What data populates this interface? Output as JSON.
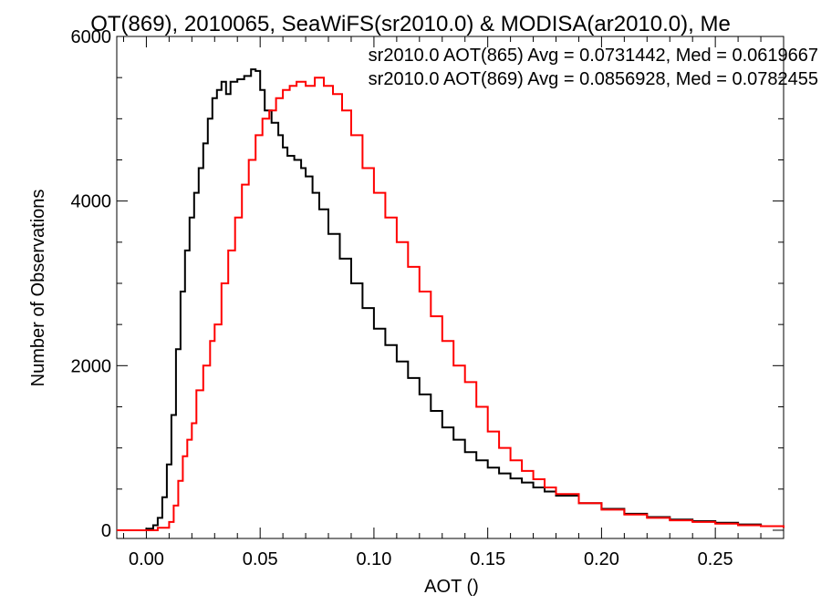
{
  "chart_data": {
    "type": "line",
    "style": "step-histogram",
    "title": "OT(869), 2010065, SeaWiFS(sr2010.0) & MODISA(ar2010.0), Me",
    "xlabel": "AOT ()",
    "ylabel": "Number of Observations",
    "xlim": [
      -0.013,
      0.28
    ],
    "ylim": [
      -100,
      6000
    ],
    "xticks": [
      0.0,
      0.05,
      0.1,
      0.15,
      0.2,
      0.25
    ],
    "xtick_labels": [
      "0.00",
      "0.05",
      "0.10",
      "0.15",
      "0.20",
      "0.25"
    ],
    "yticks": [
      0,
      2000,
      4000,
      6000
    ],
    "ytick_labels": [
      "0",
      "2000",
      "4000",
      "6000"
    ],
    "grid": false,
    "legend_position": "top-right",
    "series": [
      {
        "name": "sr2010.0 AOT(865) Avg = 0.0731442, Med = 0.0619667",
        "color": "#000000",
        "x": [
          -0.013,
          0.0,
          0.003,
          0.005,
          0.007,
          0.009,
          0.011,
          0.013,
          0.015,
          0.017,
          0.019,
          0.021,
          0.023,
          0.025,
          0.027,
          0.029,
          0.031,
          0.033,
          0.035,
          0.037,
          0.04,
          0.043,
          0.046,
          0.048,
          0.05,
          0.052,
          0.055,
          0.058,
          0.06,
          0.062,
          0.065,
          0.068,
          0.07,
          0.073,
          0.076,
          0.08,
          0.085,
          0.09,
          0.095,
          0.1,
          0.105,
          0.11,
          0.115,
          0.12,
          0.125,
          0.13,
          0.135,
          0.14,
          0.145,
          0.15,
          0.155,
          0.16,
          0.165,
          0.17,
          0.175,
          0.18,
          0.19,
          0.2,
          0.21,
          0.22,
          0.23,
          0.24,
          0.25,
          0.26,
          0.27,
          0.28
        ],
        "y": [
          0,
          20,
          60,
          150,
          400,
          800,
          1400,
          2200,
          2900,
          3400,
          3800,
          4100,
          4400,
          4700,
          5000,
          5250,
          5350,
          5450,
          5300,
          5450,
          5480,
          5520,
          5600,
          5580,
          5350,
          5100,
          4950,
          4800,
          4650,
          4550,
          4500,
          4400,
          4300,
          4100,
          3900,
          3600,
          3300,
          3000,
          2700,
          2450,
          2250,
          2050,
          1850,
          1650,
          1450,
          1250,
          1100,
          950,
          850,
          760,
          690,
          630,
          580,
          520,
          470,
          420,
          330,
          260,
          200,
          160,
          130,
          110,
          90,
          70,
          50,
          30
        ]
      },
      {
        "name": "sr2010.0 AOT(869) Avg = 0.0856928, Med = 0.0782455",
        "color": "#ff0000",
        "x": [
          -0.013,
          0.005,
          0.01,
          0.012,
          0.014,
          0.016,
          0.018,
          0.02,
          0.022,
          0.025,
          0.028,
          0.03,
          0.033,
          0.036,
          0.039,
          0.042,
          0.045,
          0.048,
          0.051,
          0.054,
          0.057,
          0.06,
          0.063,
          0.066,
          0.07,
          0.074,
          0.078,
          0.082,
          0.086,
          0.09,
          0.095,
          0.1,
          0.105,
          0.11,
          0.115,
          0.12,
          0.125,
          0.13,
          0.135,
          0.14,
          0.145,
          0.15,
          0.155,
          0.16,
          0.165,
          0.17,
          0.175,
          0.18,
          0.19,
          0.2,
          0.21,
          0.22,
          0.23,
          0.24,
          0.25,
          0.26,
          0.27,
          0.28
        ],
        "y": [
          0,
          30,
          100,
          300,
          600,
          900,
          1100,
          1300,
          1700,
          2000,
          2300,
          2500,
          3000,
          3400,
          3800,
          4200,
          4500,
          4800,
          5000,
          5100,
          5250,
          5350,
          5400,
          5450,
          5400,
          5500,
          5400,
          5300,
          5100,
          4800,
          4400,
          4100,
          3800,
          3500,
          3200,
          2900,
          2600,
          2300,
          2000,
          1800,
          1500,
          1200,
          1000,
          850,
          720,
          620,
          520,
          440,
          330,
          250,
          190,
          150,
          120,
          100,
          80,
          60,
          50,
          30
        ]
      }
    ]
  }
}
